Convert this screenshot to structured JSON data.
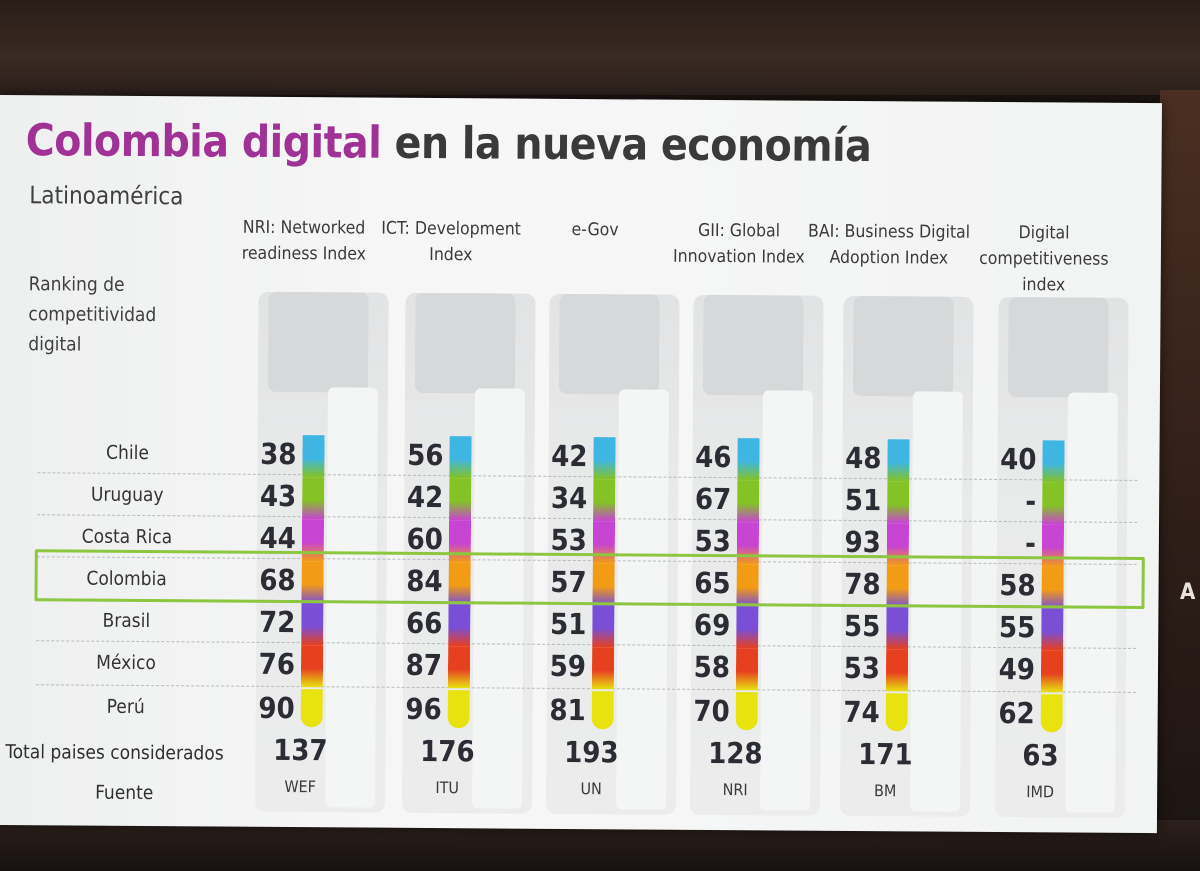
{
  "title_highlight": "Colombia digital",
  "title_rest": "en la nueva economía",
  "subtitle": "Latinoamérica",
  "ranking_label": "Ranking de competitividad digital",
  "total_label": "Total paises considerados",
  "fuente_label": "Fuente",
  "edge_text": "A",
  "chart_data": {
    "type": "table",
    "title": "Colombia digital en la nueva economía",
    "subtitle": "Latinoamérica",
    "row_header": "Ranking de competitividad digital",
    "categories": [
      "Chile",
      "Uruguay",
      "Costa Rica",
      "Colombia",
      "Brasil",
      "México",
      "Perú"
    ],
    "highlighted_category": "Colombia",
    "series": [
      {
        "name": "NRI: Networked readiness Index",
        "values": [
          "38",
          "43",
          "44",
          "68",
          "72",
          "76",
          "90"
        ],
        "total": "137",
        "source": "WEF"
      },
      {
        "name": "ICT: Development Index",
        "values": [
          "56",
          "42",
          "60",
          "84",
          "66",
          "87",
          "96"
        ],
        "total": "176",
        "source": "ITU"
      },
      {
        "name": "e-Gov",
        "values": [
          "42",
          "34",
          "53",
          "57",
          "51",
          "59",
          "81"
        ],
        "total": "193",
        "source": "UN"
      },
      {
        "name": "GII: Global Innovation Index",
        "values": [
          "46",
          "67",
          "53",
          "65",
          "69",
          "58",
          "70"
        ],
        "total": "128",
        "source": "NRI"
      },
      {
        "name": "BAI: Business Digital Adoption Index",
        "values": [
          "48",
          "51",
          "93",
          "78",
          "55",
          "53",
          "74"
        ],
        "total": "171",
        "source": "BM"
      },
      {
        "name": "Digital competitiveness index",
        "values": [
          "40",
          "-",
          "-",
          "58",
          "55",
          "49",
          "62"
        ],
        "total": "63",
        "source": "IMD"
      }
    ],
    "row_colors": [
      "#3fb6e2",
      "#84c225",
      "#c844d2",
      "#f29c15",
      "#7a4fd6",
      "#e6401f",
      "#e8e20f"
    ]
  }
}
